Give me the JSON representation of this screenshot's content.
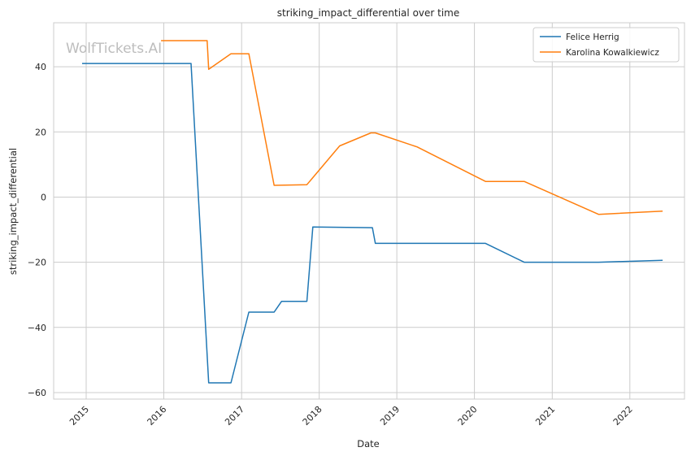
{
  "chart_data": {
    "type": "line",
    "title": "striking_impact_differential over time",
    "xlabel": "Date",
    "ylabel": "striking_impact_differential",
    "watermark": "WolfTickets.AI",
    "xlim": [
      "2014-08-01",
      "2022-09-15"
    ],
    "ylim": [
      -62,
      53.5
    ],
    "x_ticks": [
      "2015-01-01",
      "2016-01-01",
      "2017-01-01",
      "2018-01-01",
      "2019-01-01",
      "2020-01-01",
      "2021-01-01",
      "2022-01-01"
    ],
    "x_tick_labels": [
      "2015",
      "2016",
      "2017",
      "2018",
      "2019",
      "2020",
      "2021",
      "2022"
    ],
    "y_ticks": [
      -60,
      -40,
      -20,
      0,
      20,
      40
    ],
    "y_tick_labels": [
      "−60",
      "−40",
      "−20",
      "0",
      "20",
      "40"
    ],
    "grid": true,
    "legend_position": "top-right",
    "series": [
      {
        "name": "Felice Herrig",
        "color": "#1f77b4",
        "points": [
          [
            "2014-12-13",
            41
          ],
          [
            "2016-05-08",
            41
          ],
          [
            "2016-07-30",
            -57
          ],
          [
            "2016-11-12",
            -57
          ],
          [
            "2017-02-04",
            -35.3
          ],
          [
            "2017-06-03",
            -35.3
          ],
          [
            "2017-07-08",
            -32
          ],
          [
            "2017-11-04",
            -32
          ],
          [
            "2017-12-02",
            -9.2
          ],
          [
            "2018-09-08",
            -9.4
          ],
          [
            "2018-09-22",
            -14.2
          ],
          [
            "2020-02-22",
            -14.2
          ],
          [
            "2020-08-22",
            -20
          ],
          [
            "2021-08-07",
            -20
          ],
          [
            "2022-06-04",
            -19.4
          ]
        ]
      },
      {
        "name": "Karolina Kowalkiewicz",
        "color": "#ff7f0e",
        "points": [
          [
            "2015-12-19",
            48
          ],
          [
            "2016-07-23",
            48
          ],
          [
            "2016-07-30",
            39.2
          ],
          [
            "2016-11-12",
            44
          ],
          [
            "2017-02-04",
            44
          ],
          [
            "2017-06-03",
            3.6
          ],
          [
            "2017-11-04",
            3.8
          ],
          [
            "2018-04-07",
            15.7
          ],
          [
            "2018-09-01",
            19.7
          ],
          [
            "2018-09-22",
            19.7
          ],
          [
            "2019-04-06",
            15.4
          ],
          [
            "2020-02-22",
            4.8
          ],
          [
            "2020-08-22",
            4.8
          ],
          [
            "2021-08-07",
            -5.3
          ],
          [
            "2022-06-04",
            -4.3
          ]
        ]
      }
    ]
  }
}
